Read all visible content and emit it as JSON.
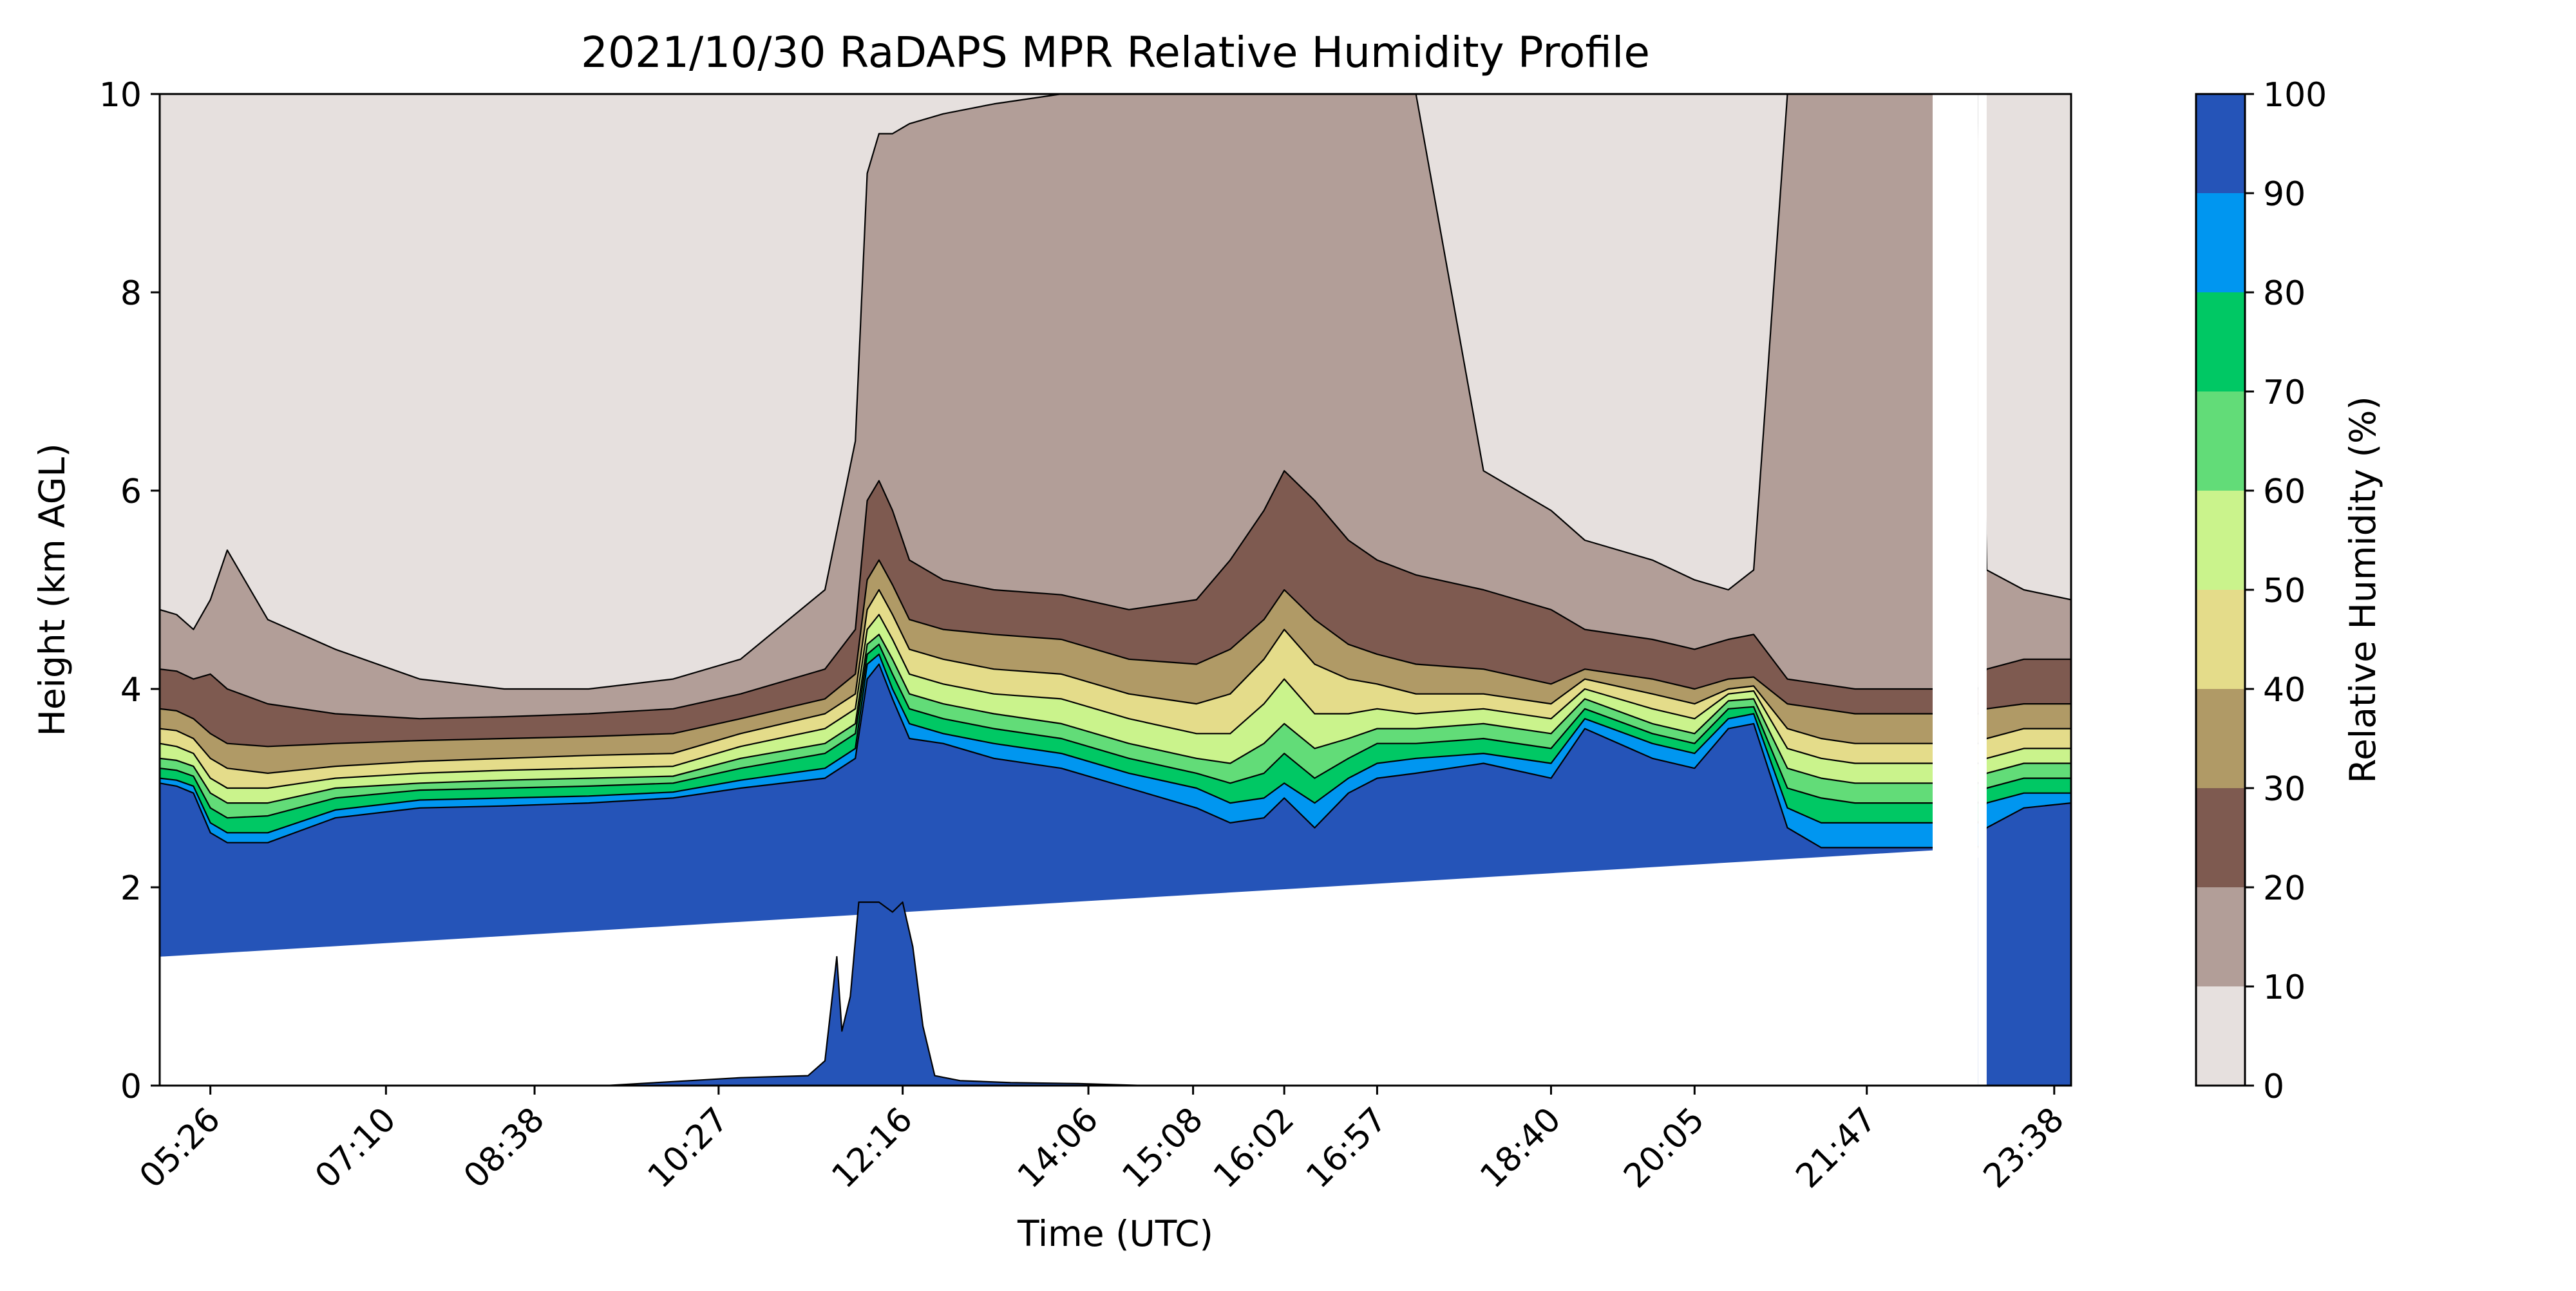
{
  "chart_data": {
    "type": "heatmap",
    "title": "2021/10/30 RaDAPS MPR Relative Humidity Profile",
    "xlabel": "Time (UTC)",
    "ylabel": "Height (km AGL)",
    "colorbar_label": "Relative Humidity (%)",
    "x_ticks": [
      "05:26",
      "07:10",
      "08:38",
      "10:27",
      "12:16",
      "14:06",
      "15:08",
      "16:02",
      "16:57",
      "18:40",
      "20:05",
      "21:47",
      "23:38"
    ],
    "x_tick_minutes": [
      326,
      430,
      518,
      627,
      736,
      846,
      908,
      962,
      1017,
      1120,
      1205,
      1307,
      1418
    ],
    "xlim_minutes": [
      296,
      1428
    ],
    "y_ticks": [
      0,
      2,
      4,
      6,
      8,
      10
    ],
    "ylim": [
      0,
      10
    ],
    "levels": [
      0,
      10,
      20,
      30,
      40,
      50,
      60,
      70,
      80,
      90,
      100
    ],
    "level_ticks": [
      "0",
      "10",
      "20",
      "30",
      "40",
      "50",
      "60",
      "70",
      "80",
      "90",
      "100"
    ],
    "colors": [
      "#e6e0de",
      "#b29e98",
      "#7e5a50",
      "#b09a66",
      "#e4dc8a",
      "#caf38c",
      "#62dc78",
      "#00c864",
      "#0096f0",
      "#2554b8"
    ],
    "profiles": {
      "t": [
        296,
        306,
        316,
        326,
        336,
        360,
        400,
        450,
        500,
        550,
        600,
        640,
        690,
        708,
        715,
        722,
        730,
        740,
        760,
        790,
        830,
        870,
        910,
        930,
        950,
        962,
        980,
        1000,
        1017,
        1040,
        1080,
        1120,
        1140,
        1180,
        1205,
        1225,
        1240,
        1260,
        1280,
        1300,
        1320,
        1340,
        1373,
        1378,
        1400,
        1428
      ],
      "b90": [
        3.05,
        3.02,
        2.95,
        2.55,
        2.45,
        2.45,
        2.7,
        2.8,
        2.82,
        2.85,
        2.9,
        3.0,
        3.1,
        3.3,
        4.1,
        4.25,
        3.9,
        3.5,
        3.45,
        3.3,
        3.2,
        3.0,
        2.8,
        2.65,
        2.7,
        2.9,
        2.6,
        2.95,
        3.1,
        3.15,
        3.25,
        3.1,
        3.6,
        3.3,
        3.2,
        3.6,
        3.65,
        2.6,
        2.4,
        2.4,
        2.4,
        2.4,
        2.4,
        2.6,
        2.8,
        2.85
      ],
      "b80": [
        3.1,
        3.08,
        3.02,
        2.65,
        2.55,
        2.55,
        2.78,
        2.88,
        2.9,
        2.92,
        2.96,
        3.08,
        3.2,
        3.4,
        4.25,
        4.35,
        4.0,
        3.65,
        3.55,
        3.45,
        3.35,
        3.15,
        3.0,
        2.85,
        2.9,
        3.05,
        2.85,
        3.1,
        3.25,
        3.3,
        3.35,
        3.25,
        3.7,
        3.45,
        3.35,
        3.7,
        3.75,
        2.8,
        2.65,
        2.65,
        2.65,
        2.65,
        2.65,
        2.85,
        2.95,
        2.95
      ],
      "b70": [
        3.2,
        3.18,
        3.12,
        2.8,
        2.7,
        2.72,
        2.9,
        2.98,
        3.0,
        3.02,
        3.05,
        3.2,
        3.35,
        3.55,
        4.35,
        4.45,
        4.15,
        3.8,
        3.7,
        3.6,
        3.5,
        3.3,
        3.15,
        3.05,
        3.15,
        3.35,
        3.1,
        3.3,
        3.45,
        3.45,
        3.5,
        3.4,
        3.8,
        3.55,
        3.45,
        3.8,
        3.82,
        3.0,
        2.9,
        2.85,
        2.85,
        2.85,
        2.85,
        3.0,
        3.1,
        3.1
      ],
      "b60": [
        3.3,
        3.28,
        3.22,
        2.95,
        2.85,
        2.85,
        3.0,
        3.05,
        3.08,
        3.1,
        3.12,
        3.3,
        3.45,
        3.65,
        4.45,
        4.55,
        4.3,
        3.95,
        3.85,
        3.75,
        3.65,
        3.45,
        3.3,
        3.25,
        3.45,
        3.65,
        3.4,
        3.5,
        3.6,
        3.6,
        3.65,
        3.55,
        3.9,
        3.65,
        3.55,
        3.88,
        3.9,
        3.2,
        3.1,
        3.05,
        3.05,
        3.05,
        3.05,
        3.15,
        3.25,
        3.25
      ],
      "b50": [
        3.45,
        3.42,
        3.35,
        3.1,
        3.0,
        3.0,
        3.1,
        3.15,
        3.18,
        3.2,
        3.22,
        3.42,
        3.6,
        3.8,
        4.6,
        4.75,
        4.5,
        4.15,
        4.05,
        3.95,
        3.9,
        3.7,
        3.55,
        3.55,
        3.85,
        4.1,
        3.75,
        3.75,
        3.8,
        3.75,
        3.8,
        3.7,
        4.0,
        3.8,
        3.7,
        3.95,
        3.98,
        3.4,
        3.3,
        3.25,
        3.25,
        3.25,
        3.25,
        3.3,
        3.4,
        3.4
      ],
      "b40": [
        3.6,
        3.58,
        3.5,
        3.3,
        3.2,
        3.15,
        3.22,
        3.27,
        3.3,
        3.33,
        3.35,
        3.55,
        3.75,
        3.95,
        4.8,
        5.0,
        4.75,
        4.4,
        4.3,
        4.2,
        4.15,
        3.95,
        3.85,
        3.95,
        4.3,
        4.6,
        4.25,
        4.1,
        4.05,
        3.95,
        3.95,
        3.85,
        4.1,
        3.95,
        3.85,
        4.0,
        4.03,
        3.6,
        3.5,
        3.45,
        3.45,
        3.45,
        3.45,
        3.5,
        3.6,
        3.6
      ],
      "b30": [
        3.8,
        3.78,
        3.7,
        3.55,
        3.45,
        3.42,
        3.45,
        3.48,
        3.5,
        3.52,
        3.55,
        3.7,
        3.9,
        4.15,
        5.1,
        5.3,
        5.05,
        4.7,
        4.6,
        4.55,
        4.5,
        4.3,
        4.25,
        4.4,
        4.7,
        5.0,
        4.7,
        4.45,
        4.35,
        4.25,
        4.2,
        4.05,
        4.2,
        4.1,
        4.0,
        4.1,
        4.12,
        3.85,
        3.8,
        3.75,
        3.75,
        3.75,
        3.75,
        3.8,
        3.85,
        3.85
      ],
      "b20": [
        4.2,
        4.18,
        4.1,
        4.15,
        4.0,
        3.85,
        3.75,
        3.7,
        3.72,
        3.75,
        3.8,
        3.95,
        4.2,
        4.6,
        5.9,
        6.1,
        5.8,
        5.3,
        5.1,
        5.0,
        4.95,
        4.8,
        4.9,
        5.3,
        5.8,
        6.2,
        5.9,
        5.5,
        5.3,
        5.15,
        5.0,
        4.8,
        4.6,
        4.5,
        4.4,
        4.5,
        4.55,
        4.1,
        4.05,
        4.0,
        4.0,
        4.0,
        4.0,
        4.2,
        4.3,
        4.3
      ],
      "b10": [
        4.8,
        4.75,
        4.6,
        4.9,
        5.4,
        4.7,
        4.4,
        4.1,
        4.0,
        4.0,
        4.1,
        4.3,
        5.0,
        6.5,
        9.2,
        9.6,
        9.6,
        9.7,
        9.8,
        9.9,
        10.0,
        10.0,
        10.0,
        10.0,
        10.0,
        10.0,
        10.0,
        10.0,
        10.0,
        10.0,
        6.2,
        5.8,
        5.5,
        5.3,
        5.1,
        5.0,
        5.2,
        10.0,
        10.0,
        10.0,
        10.0,
        10.0,
        10.0,
        5.2,
        5.0,
        4.9
      ]
    },
    "gaps": [
      {
        "type": "band",
        "t": [
          296,
          1373
        ],
        "bottom": [
          0.0,
          0.0
        ],
        "top": [
          1.3,
          2.4
        ]
      },
      {
        "type": "rect",
        "t": [
          1346,
          1373
        ],
        "y": [
          2.3,
          10.0
        ]
      },
      {
        "type": "rect",
        "t": [
          1373,
          1378
        ],
        "y": [
          0.0,
          10.0
        ]
      }
    ],
    "surface_moisture": {
      "t": [
        296,
        560,
        600,
        640,
        680,
        690,
        697,
        700,
        705,
        710,
        722,
        730,
        736,
        742,
        748,
        755,
        770,
        800,
        840,
        880,
        1373
      ],
      "top": [
        0.0,
        0.0,
        0.04,
        0.08,
        0.1,
        0.25,
        1.3,
        0.55,
        0.9,
        1.85,
        1.85,
        1.75,
        1.85,
        1.4,
        0.6,
        0.1,
        0.05,
        0.03,
        0.02,
        0.0,
        0.0
      ]
    }
  }
}
